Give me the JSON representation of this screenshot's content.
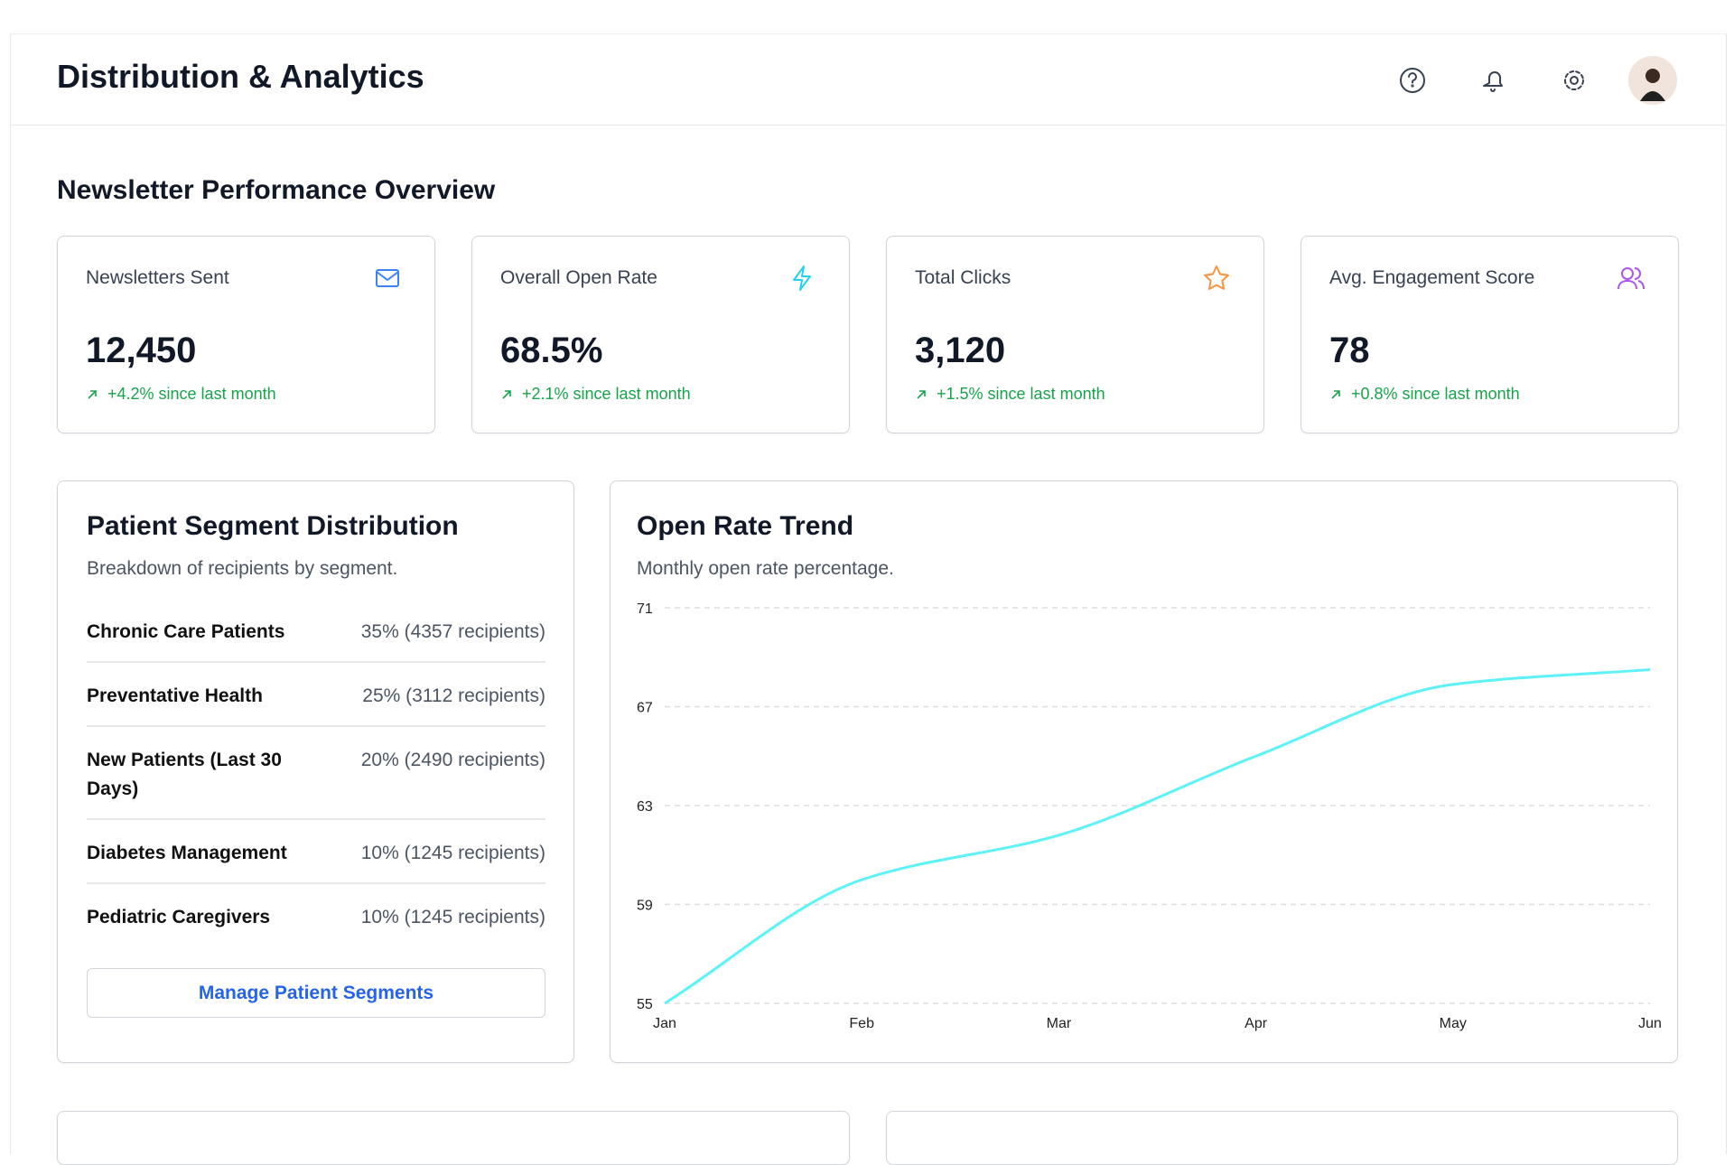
{
  "header": {
    "title": "Distribution & Analytics"
  },
  "overview": {
    "title": "Newsletter Performance Overview",
    "cards": [
      {
        "label": "Newsletters Sent",
        "value": "12,450",
        "change": "+4.2% since last month"
      },
      {
        "label": "Overall Open Rate",
        "value": "68.5%",
        "change": "+2.1% since last month"
      },
      {
        "label": "Total Clicks",
        "value": "3,120",
        "change": "+1.5% since last month"
      },
      {
        "label": "Avg. Engagement Score",
        "value": "78",
        "change": "+0.8% since last month"
      }
    ]
  },
  "segments": {
    "title": "Patient Segment Distribution",
    "subtitle": "Breakdown of recipients by segment.",
    "rows": [
      {
        "name": "Chronic Care Patients",
        "value": "35% (4357 recipients)"
      },
      {
        "name": "Preventative Health",
        "value": "25% (3112 recipients)"
      },
      {
        "name": "New Patients (Last 30 Days)",
        "value": "20% (2490 recipients)"
      },
      {
        "name": "Diabetes Management",
        "value": "10% (1245 recipients)"
      },
      {
        "name": "Pediatric Caregivers",
        "value": "10% (1245 recipients)"
      }
    ],
    "button": "Manage Patient Segments"
  },
  "chart_data": {
    "type": "line",
    "title": "Open Rate Trend",
    "subtitle": "Monthly open rate percentage.",
    "categories": [
      "Jan",
      "Feb",
      "Mar",
      "Apr",
      "May",
      "Jun"
    ],
    "values": [
      55,
      60,
      61.8,
      65,
      67.9,
      68.5
    ],
    "color": "#5cf2f7",
    "ylim": [
      55,
      71
    ],
    "yticks": [
      55,
      59,
      63,
      67,
      71
    ],
    "grid": true
  }
}
